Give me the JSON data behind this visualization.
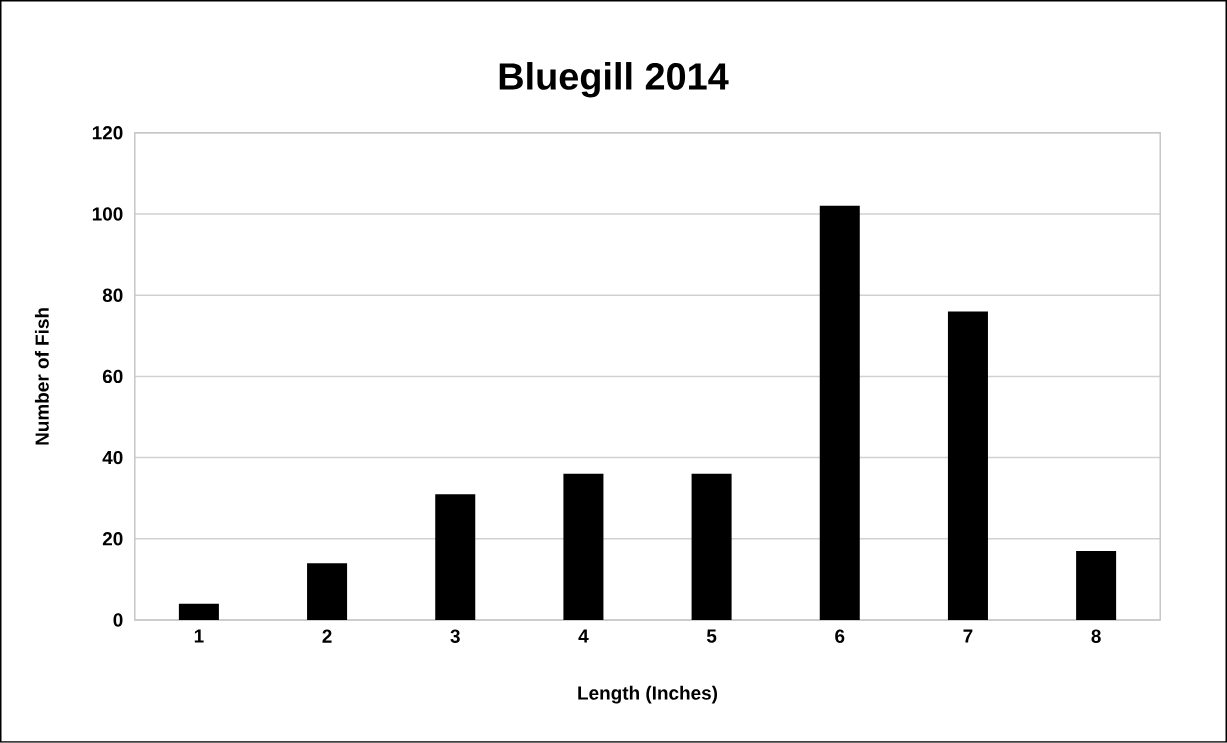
{
  "chart_data": {
    "type": "bar",
    "title": "Bluegill 2014",
    "xlabel": "Length (Inches)",
    "ylabel": "Number of Fish",
    "categories": [
      "1",
      "2",
      "3",
      "4",
      "5",
      "6",
      "7",
      "8"
    ],
    "values": [
      4,
      14,
      31,
      36,
      36,
      102,
      76,
      17
    ],
    "color": "#000000",
    "ylim": [
      0,
      120
    ],
    "yticks": [
      0,
      20,
      40,
      60,
      80,
      100,
      120
    ],
    "grid": "y"
  }
}
